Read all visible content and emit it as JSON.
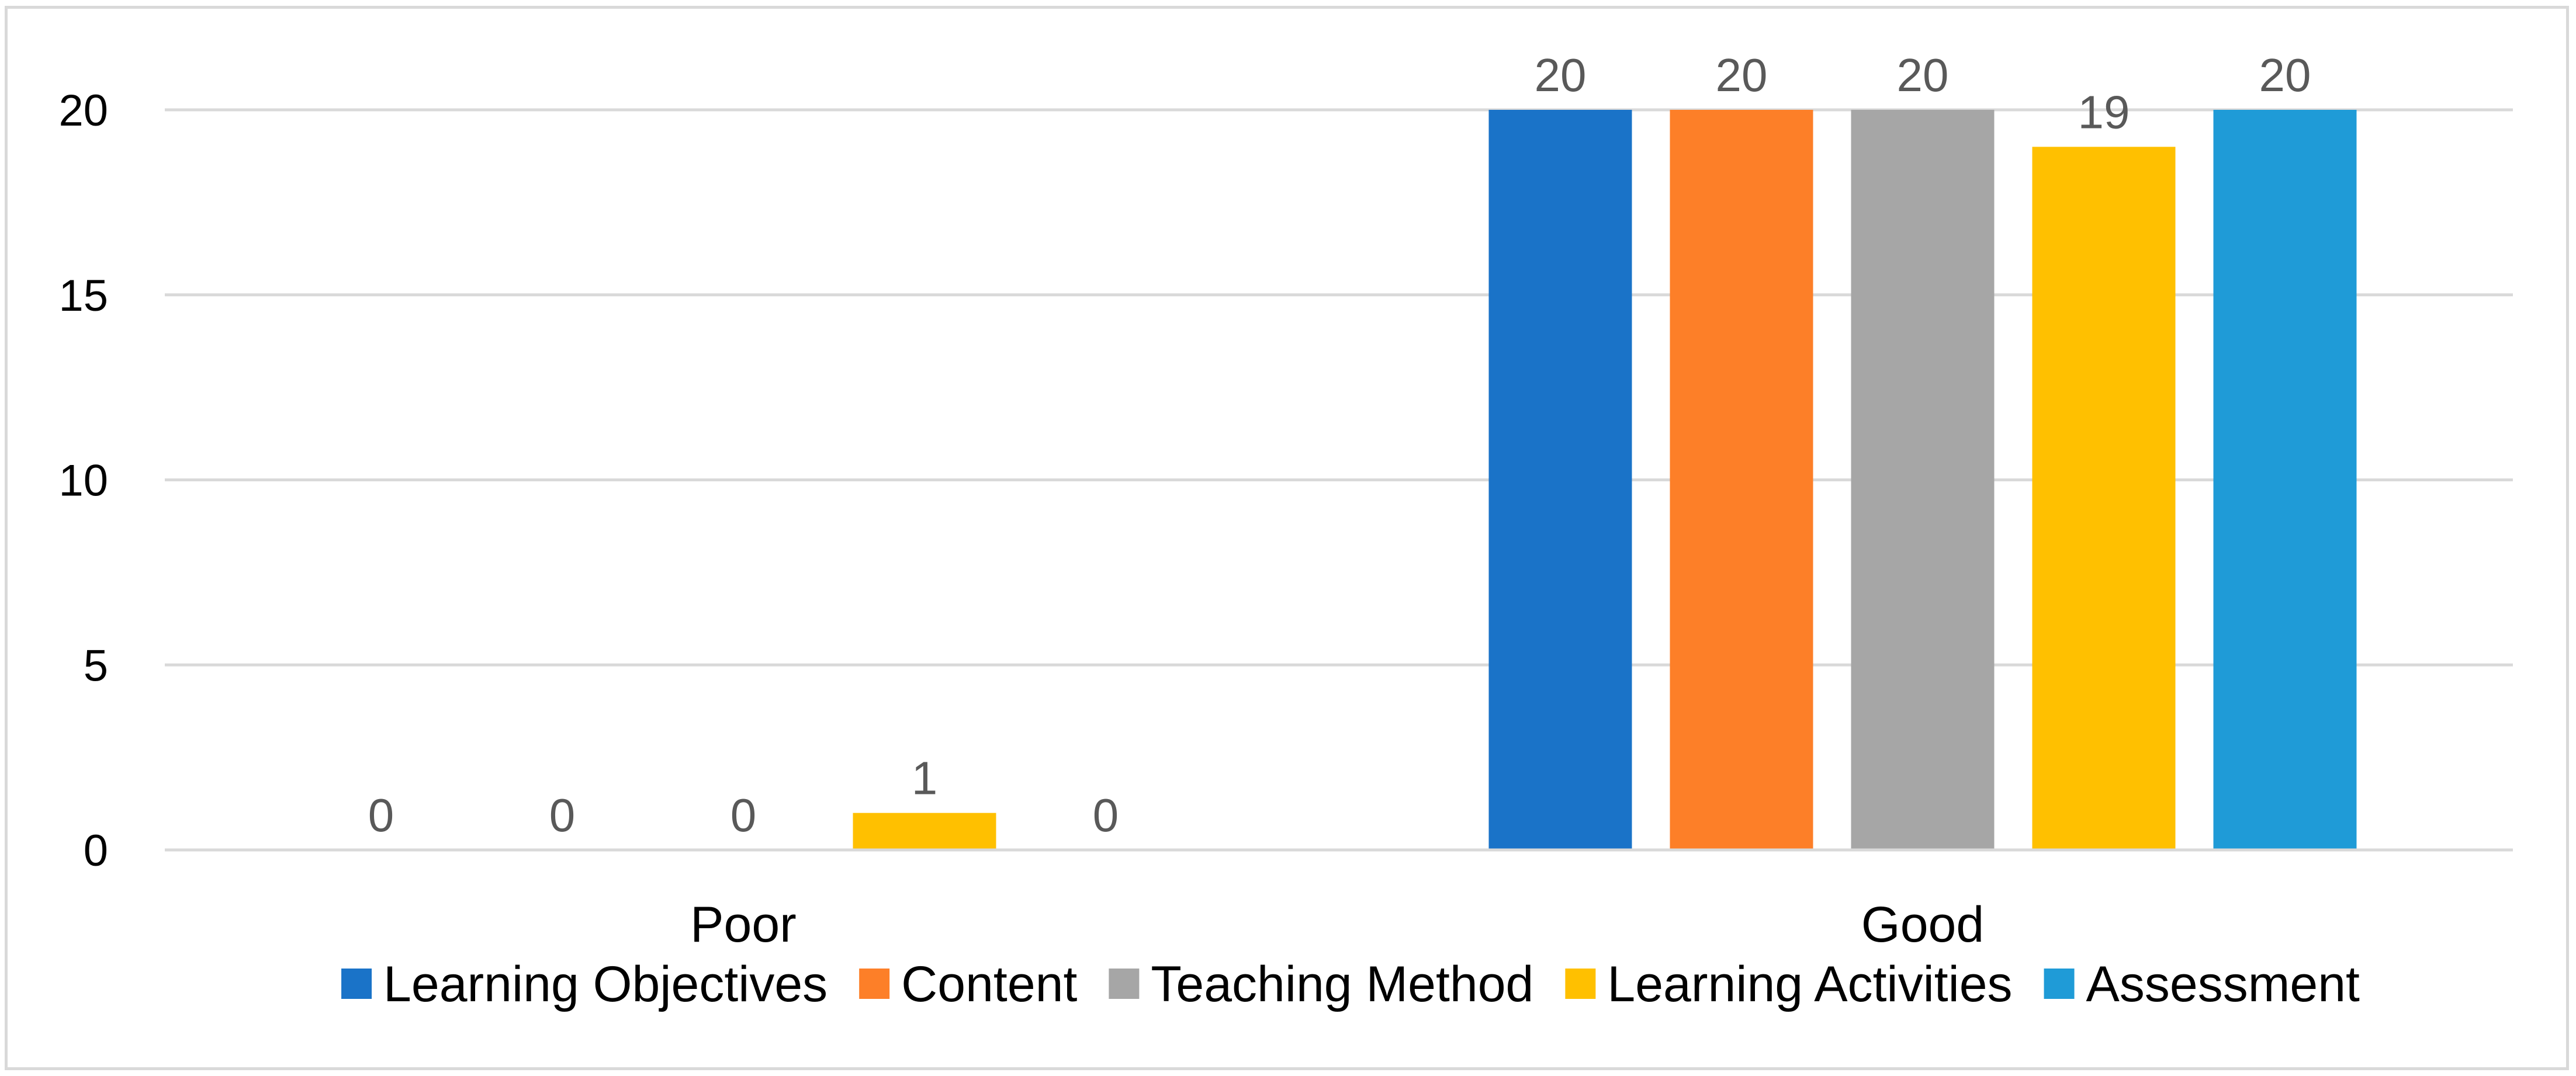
{
  "chart_data": {
    "type": "bar",
    "categories": [
      "Poor",
      "Good"
    ],
    "series": [
      {
        "name": "Learning Objectives",
        "color": "#1a73c8",
        "values": [
          0,
          20
        ]
      },
      {
        "name": "Content",
        "color": "#fd7f28",
        "values": [
          0,
          20
        ]
      },
      {
        "name": "Teaching Method",
        "color": "#a6a6a6",
        "values": [
          0,
          20
        ]
      },
      {
        "name": "Learning Activities",
        "color": "#ffc000",
        "values": [
          1,
          19
        ]
      },
      {
        "name": "Assessment",
        "color": "#1f9bd7",
        "values": [
          0,
          20
        ]
      }
    ],
    "yticks": [
      0,
      5,
      10,
      15,
      20
    ],
    "ylim": [
      0,
      20
    ],
    "grid": true,
    "legend_position": "bottom",
    "data_labels": true,
    "title": "",
    "xlabel": "",
    "ylabel": ""
  }
}
